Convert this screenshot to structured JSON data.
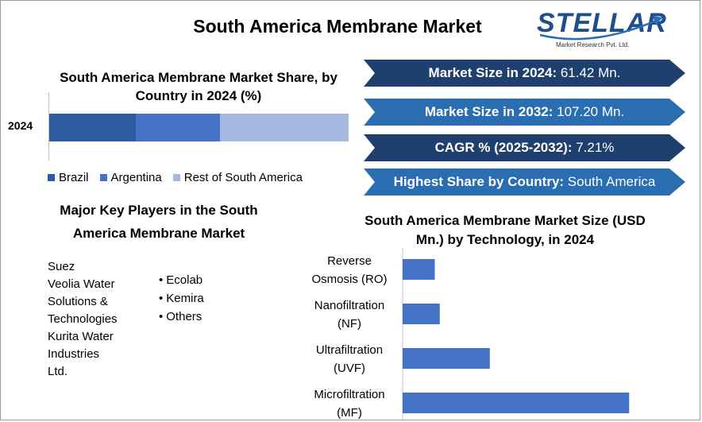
{
  "title": "South America Membrane Market",
  "logo": {
    "name": "STELLAR",
    "tagline": "Market Research Pvt. Ltd."
  },
  "share_chart": {
    "title": "South America Membrane Market Share, by Country in 2024 (%)",
    "year_label": "2024"
  },
  "key_players": {
    "title_line1": "Major Key Players in the South",
    "title_line2": "America Membrane Market",
    "col1": [
      "Suez",
      "Veolia Water",
      "Solutions &",
      "Technologies",
      "Kurita Water",
      "Industries",
      "Ltd."
    ],
    "col2": [
      "Ecolab",
      "Kemira",
      "Others"
    ]
  },
  "stats": [
    {
      "label": "Market Size in 2024:",
      "value": " 61.42 Mn.",
      "color": "#1f3f6e"
    },
    {
      "label": "Market Size in 2032:",
      "value": " 107.20 Mn.",
      "color": "#2a6db0"
    },
    {
      "label": "CAGR % (2025-2032):",
      "value": " 7.21%",
      "color": "#1f3f6e"
    },
    {
      "label": "Highest Share by Country:",
      "value": " South America",
      "color": "#2a6db0"
    }
  ],
  "tech_chart": {
    "title_line1": "South America Membrane Market Size (USD",
    "title_line2": "Mn.) by Technology, in 2024"
  },
  "chart_data": [
    {
      "type": "bar",
      "orientation": "horizontal-stacked",
      "title": "South America Membrane Market Share, by Country in 2024 (%)",
      "categories": [
        "2024"
      ],
      "series": [
        {
          "name": "Brazil",
          "values": [
            29
          ],
          "color": "#2e5a9e"
        },
        {
          "name": "Argentina",
          "values": [
            28
          ],
          "color": "#4472c4"
        },
        {
          "name": "Rest of South America",
          "values": [
            43
          ],
          "color": "#a6b8e0"
        }
      ],
      "xlim": [
        0,
        100
      ],
      "legend": "bottom"
    },
    {
      "type": "bar",
      "orientation": "horizontal",
      "title": "South America Membrane Market Size (USD Mn.) by Technology, in 2024",
      "categories": [
        [
          "Reverse",
          "Osmosis (RO)"
        ],
        [
          "Nanofiltration",
          "(NF)"
        ],
        [
          "Ultrafiltration",
          "(UVF)"
        ],
        [
          "Microfiltration",
          "(MF)"
        ]
      ],
      "values": [
        4.5,
        5.2,
        12.2,
        31.7
      ],
      "xlim": [
        0,
        40
      ],
      "color": "#4472c4"
    }
  ]
}
